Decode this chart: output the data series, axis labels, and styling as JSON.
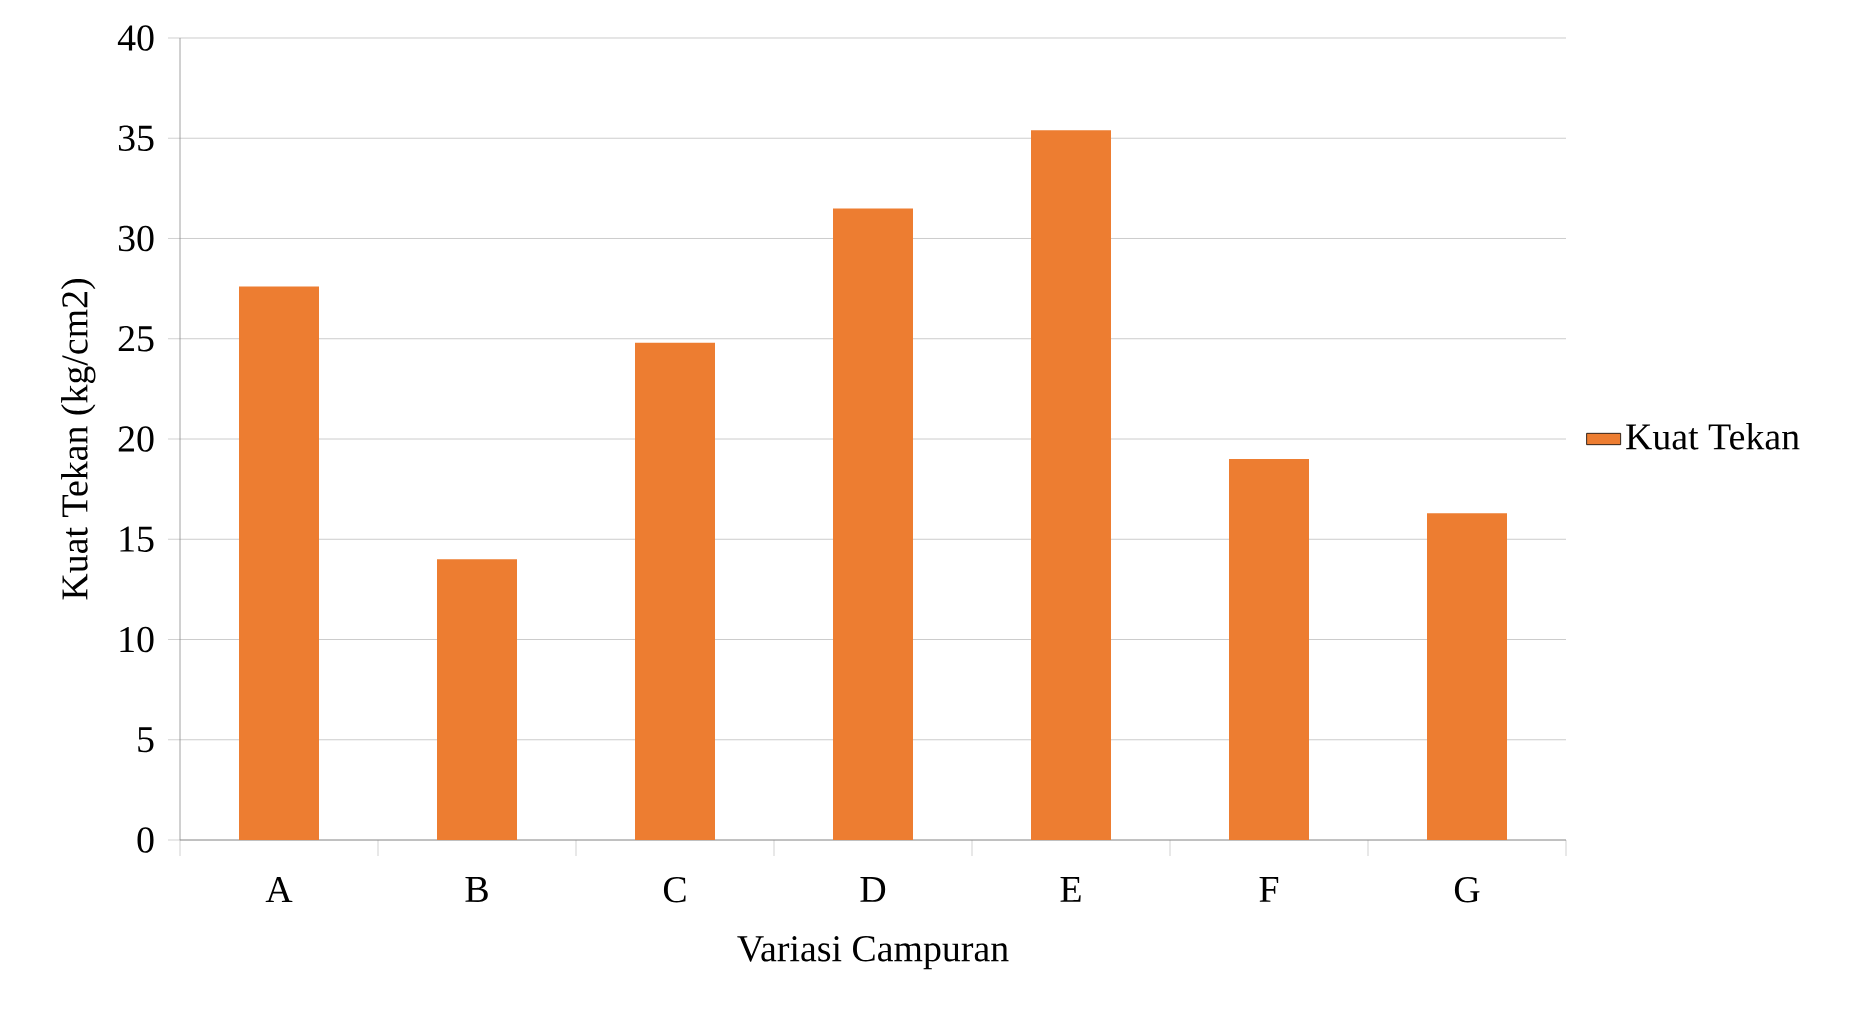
{
  "chart_data": {
    "type": "bar",
    "xlabel": "Variasi Campuran",
    "ylabel": "Kuat Tekan (kg/cm2)",
    "categories": [
      "A",
      "B",
      "C",
      "D",
      "E",
      "F",
      "G"
    ],
    "series": [
      {
        "name": "Kuat Tekan",
        "color": "#ed7d31",
        "values": [
          27.6,
          14.0,
          24.8,
          31.5,
          35.4,
          19.0,
          16.3
        ]
      }
    ],
    "ylim": [
      0,
      40
    ],
    "yticks": [
      0,
      5,
      10,
      15,
      20,
      25,
      30,
      35,
      40
    ],
    "grid": "y",
    "legend": "right"
  }
}
